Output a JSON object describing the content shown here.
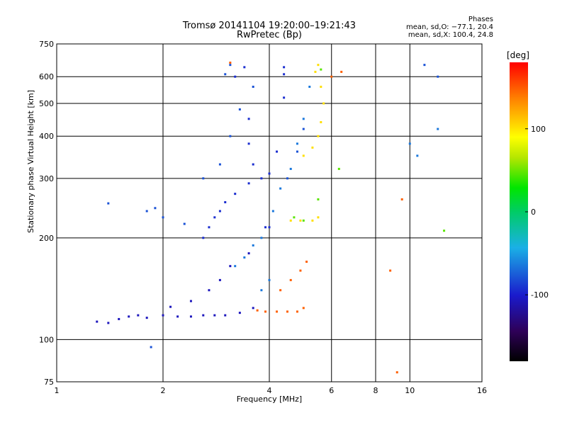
{
  "header": {
    "title_line1": "Tromsø 20141104 19:20:00–19:21:43",
    "title_line2": "RwPretec (Bp)",
    "phases_title": "Phases",
    "phases_line1": "mean, sd,O: −77.1, 20.4",
    "phases_line2": "mean, sd,X: 100.4, 24.8"
  },
  "chart_data": {
    "type": "scatter",
    "xlabel": "Frequency [MHz]",
    "ylabel": "Stationary phase Virtual Height [km]",
    "x_scale": "log",
    "y_scale": "log",
    "xlim": [
      1,
      16
    ],
    "ylim": [
      75,
      750
    ],
    "x_ticks": [
      1,
      2,
      4,
      6,
      8,
      10,
      16
    ],
    "x_tick_labels": [
      "1",
      "2",
      "4",
      "6",
      "8",
      "10",
      "16"
    ],
    "y_ticks": [
      75,
      100,
      200,
      300,
      400,
      500,
      600,
      750
    ],
    "y_tick_labels": [
      "75",
      "100",
      "200",
      "300",
      "400",
      "500",
      "600",
      "750"
    ],
    "grid": true,
    "colorbar": {
      "label": "[deg]",
      "range": [
        -180,
        180
      ],
      "ticks": [
        100,
        0,
        -100
      ],
      "tick_labels": [
        "100",
        "0",
        "-100"
      ],
      "colormap": "rainbow",
      "colors": [
        "#000000",
        "#2e0057",
        "#1a1acc",
        "#1ab0e6",
        "#00cc66",
        "#00e600",
        "#b3e600",
        "#ffff00",
        "#ff8000",
        "#ff0000"
      ]
    },
    "series": [
      {
        "phase_deg": -105,
        "points": [
          [
            1.3,
            113
          ],
          [
            1.4,
            112
          ],
          [
            1.5,
            115
          ],
          [
            1.6,
            117
          ],
          [
            1.7,
            118
          ],
          [
            1.8,
            116
          ],
          [
            2.0,
            118
          ],
          [
            2.2,
            117
          ],
          [
            2.4,
            117
          ],
          [
            2.6,
            118
          ],
          [
            2.8,
            118
          ],
          [
            3.0,
            118
          ],
          [
            3.3,
            120
          ],
          [
            3.6,
            124
          ],
          [
            2.1,
            125
          ],
          [
            2.4,
            130
          ],
          [
            2.7,
            140
          ],
          [
            2.9,
            150
          ],
          [
            3.1,
            165
          ],
          [
            3.5,
            180
          ]
        ]
      },
      {
        "phase_deg": -95,
        "points": [
          [
            2.6,
            200
          ],
          [
            2.7,
            215
          ],
          [
            2.8,
            230
          ],
          [
            2.9,
            240
          ],
          [
            3.0,
            255
          ],
          [
            3.2,
            270
          ],
          [
            3.5,
            290
          ],
          [
            3.8,
            300
          ],
          [
            4.0,
            310
          ],
          [
            3.6,
            330
          ],
          [
            3.5,
            380
          ],
          [
            3.5,
            450
          ],
          [
            4.2,
            360
          ],
          [
            4.4,
            520
          ],
          [
            4.4,
            610
          ],
          [
            4.4,
            640
          ],
          [
            3.2,
            600
          ],
          [
            3.4,
            640
          ],
          [
            3.9,
            215
          ],
          [
            4.0,
            215
          ]
        ]
      },
      {
        "phase_deg": -85,
        "points": [
          [
            1.8,
            240
          ],
          [
            1.9,
            245
          ],
          [
            2.0,
            230
          ],
          [
            2.3,
            220
          ],
          [
            2.6,
            300
          ],
          [
            2.9,
            330
          ],
          [
            3.1,
            400
          ],
          [
            3.3,
            480
          ],
          [
            3.6,
            560
          ],
          [
            3.0,
            610
          ],
          [
            3.1,
            650
          ],
          [
            4.5,
            300
          ],
          [
            4.8,
            360
          ],
          [
            5.0,
            420
          ],
          [
            1.4,
            253
          ],
          [
            1.85,
            95
          ],
          [
            11.0,
            650
          ],
          [
            12.0,
            600
          ]
        ]
      },
      {
        "phase_deg": -75,
        "points": [
          [
            3.2,
            165
          ],
          [
            3.4,
            175
          ],
          [
            3.6,
            190
          ],
          [
            3.8,
            200
          ],
          [
            4.1,
            240
          ],
          [
            4.3,
            280
          ],
          [
            4.6,
            320
          ],
          [
            4.8,
            380
          ],
          [
            5.0,
            450
          ],
          [
            5.2,
            560
          ],
          [
            4.0,
            150
          ],
          [
            3.8,
            140
          ],
          [
            10.0,
            380
          ],
          [
            12.0,
            420
          ],
          [
            10.5,
            350
          ]
        ]
      },
      {
        "phase_deg": 110,
        "points": [
          [
            5.0,
            350
          ],
          [
            5.3,
            370
          ],
          [
            5.5,
            400
          ],
          [
            5.6,
            440
          ],
          [
            5.7,
            500
          ],
          [
            5.6,
            560
          ],
          [
            5.4,
            620
          ],
          [
            5.5,
            650
          ],
          [
            4.6,
            225
          ],
          [
            4.9,
            225
          ],
          [
            5.3,
            225
          ],
          [
            5.5,
            230
          ]
        ]
      },
      {
        "phase_deg": 150,
        "points": [
          [
            3.7,
            122
          ],
          [
            3.9,
            121
          ],
          [
            4.2,
            121
          ],
          [
            4.5,
            121
          ],
          [
            4.8,
            121
          ],
          [
            5.0,
            124
          ],
          [
            4.3,
            140
          ],
          [
            4.6,
            150
          ],
          [
            4.9,
            160
          ],
          [
            5.1,
            170
          ],
          [
            3.1,
            660
          ],
          [
            6.0,
            600
          ],
          [
            6.4,
            620
          ],
          [
            9.2,
            80
          ],
          [
            8.8,
            160
          ],
          [
            9.5,
            260
          ]
        ]
      },
      {
        "phase_deg": 40,
        "points": [
          [
            4.7,
            230
          ],
          [
            5.0,
            225
          ],
          [
            5.6,
            630
          ],
          [
            5.5,
            260
          ],
          [
            6.3,
            320
          ],
          [
            12.5,
            210
          ]
        ]
      }
    ]
  }
}
